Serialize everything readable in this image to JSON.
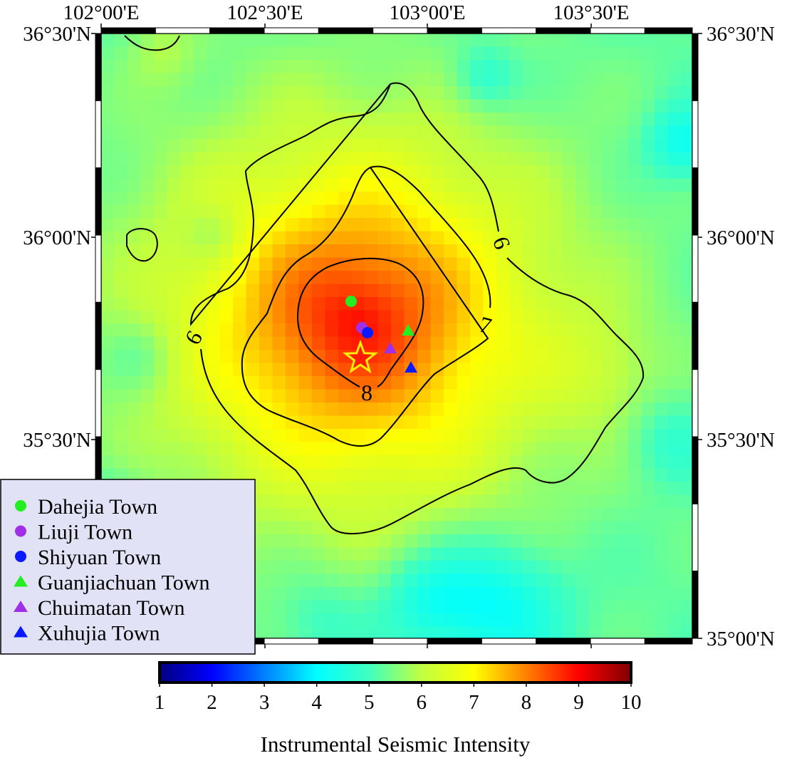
{
  "map": {
    "lon_labels": [
      "102°00'E",
      "102°30'E",
      "103°00'E",
      "103°30'E"
    ],
    "lat_labels_left": [
      "36°30'N",
      "36°00'N",
      "35°30'N"
    ],
    "lat_labels_right": [
      "36°30'N",
      "36°00'N",
      "35°30'N",
      "35°00'N"
    ],
    "contour_labels": [
      "6",
      "6",
      "7",
      "8"
    ],
    "epicenter_icon": "star-icon",
    "epicenter_colors": {
      "fill": "#ff1a00",
      "stroke": "#ffee00"
    }
  },
  "legend": {
    "items": [
      {
        "label": "Dahejia Town",
        "shape": "circle",
        "color": "#22ee22"
      },
      {
        "label": "Liuji Town",
        "shape": "circle",
        "color": "#a030e8"
      },
      {
        "label": "Shiyuan Town",
        "shape": "circle",
        "color": "#0a1aff"
      },
      {
        "label": "Guanjiachuan Town",
        "shape": "triangle",
        "color": "#22ee22"
      },
      {
        "label": "Chuimatan Town",
        "shape": "triangle",
        "color": "#a030e8"
      },
      {
        "label": "Xuhujia Town",
        "shape": "triangle",
        "color": "#0a1aff"
      }
    ]
  },
  "colorbar": {
    "title": "Instrumental Seismic Intensity",
    "ticks": [
      "1",
      "2",
      "3",
      "4",
      "5",
      "6",
      "7",
      "8",
      "9",
      "10"
    ],
    "range": [
      1,
      10
    ],
    "colormap": [
      "#00007f",
      "#0000ff",
      "#0080ff",
      "#00ffff",
      "#40ffbf",
      "#c0ff40",
      "#ffff00",
      "#ff8000",
      "#ff0000",
      "#7f0000"
    ]
  }
}
